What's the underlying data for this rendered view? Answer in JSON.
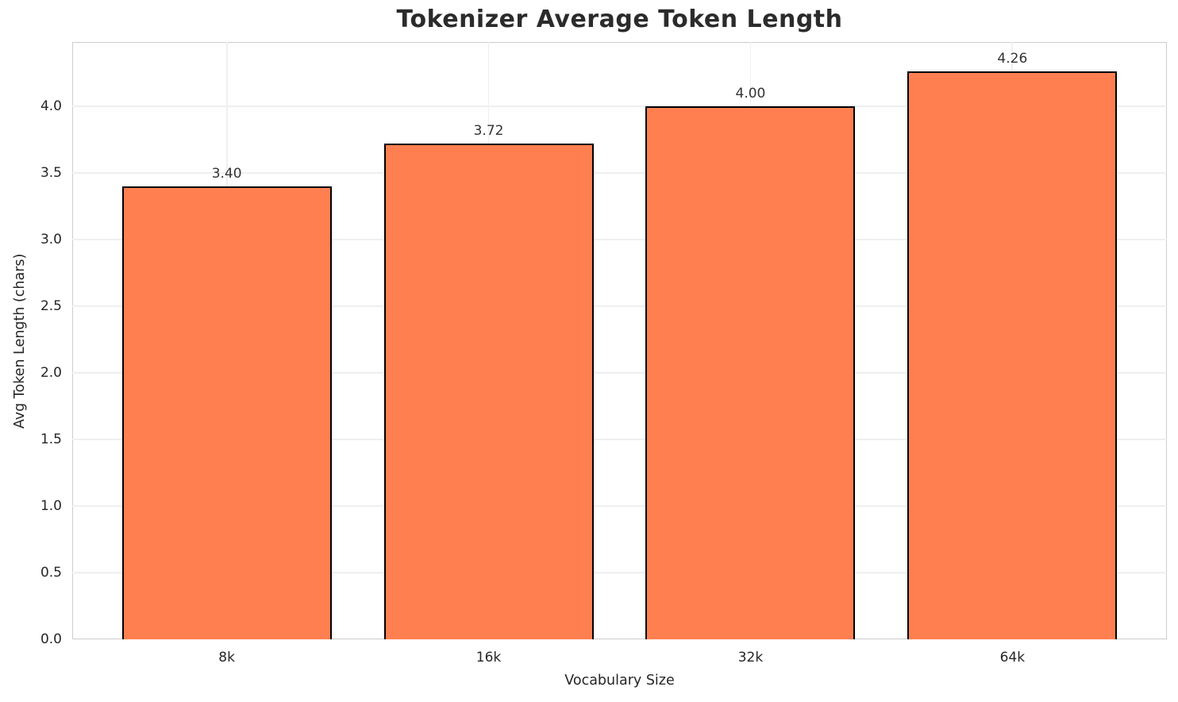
{
  "chart_data": {
    "type": "bar",
    "title": "Tokenizer Average Token Length",
    "xlabel": "Vocabulary Size",
    "ylabel": "Avg Token Length (chars)",
    "categories": [
      "8k",
      "16k",
      "32k",
      "64k"
    ],
    "values": [
      3.4,
      3.72,
      4.0,
      4.26
    ],
    "bar_labels": [
      "3.40",
      "3.72",
      "4.00",
      "4.26"
    ],
    "yticks": [
      "0.0",
      "0.5",
      "1.0",
      "1.5",
      "2.0",
      "2.5",
      "3.0",
      "3.5",
      "4.0"
    ],
    "ylim": [
      0,
      4.48
    ],
    "grid": true,
    "legend_position": "none",
    "colors": {
      "bar_fill": "#FF7F50",
      "bar_edge": "#000000",
      "gridline": "#EFEFEF",
      "spine": "#CCCCCC",
      "text": "#262626",
      "title_text": "#2B2B2B",
      "background": "#FFFFFF"
    }
  }
}
